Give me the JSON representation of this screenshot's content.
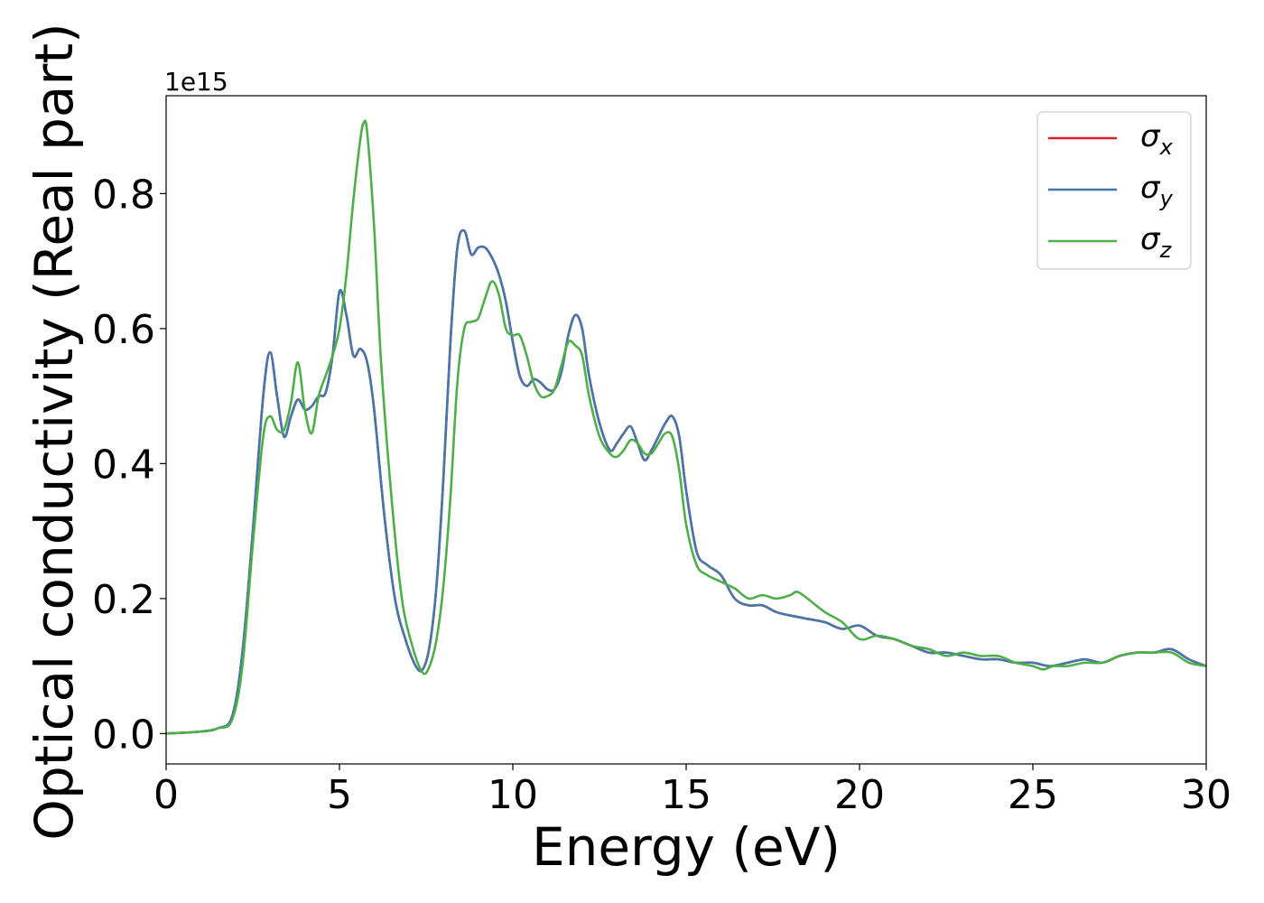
{
  "chart_data": {
    "type": "line",
    "xlabel": "Energy (eV)",
    "ylabel": "Optical conductivity (Real part)",
    "offset_text": "1e15",
    "xlim": [
      0,
      30
    ],
    "ylim": [
      -0.045,
      0.945
    ],
    "xticks": [
      0,
      5,
      10,
      15,
      20,
      25,
      30
    ],
    "yticks": [
      0.0,
      0.2,
      0.4,
      0.6,
      0.8
    ],
    "xtick_labels": [
      "0",
      "5",
      "10",
      "15",
      "20",
      "25",
      "30"
    ],
    "ytick_labels": [
      "0.0",
      "0.2",
      "0.4",
      "0.6",
      "0.8"
    ],
    "grid": false,
    "legend_position": "top-right",
    "series": [
      {
        "name": "σ_x",
        "legend_main": "σ",
        "legend_sub": "x",
        "color": "#e41a1c",
        "x": [
          0,
          1,
          1.5,
          1.9,
          2.2,
          2.5,
          2.8,
          3.0,
          3.2,
          3.4,
          3.6,
          3.8,
          4.0,
          4.2,
          4.4,
          4.6,
          4.8,
          5.0,
          5.2,
          5.4,
          5.6,
          5.8,
          6.0,
          6.3,
          6.6,
          6.9,
          7.2,
          7.4,
          7.6,
          7.8,
          8.0,
          8.2,
          8.4,
          8.6,
          8.8,
          9.0,
          9.2,
          9.4,
          9.6,
          9.8,
          10.0,
          10.2,
          10.4,
          10.6,
          10.8,
          11.0,
          11.2,
          11.4,
          11.6,
          11.8,
          12.0,
          12.2,
          12.5,
          12.8,
          13.0,
          13.2,
          13.4,
          13.6,
          13.8,
          14.0,
          14.2,
          14.4,
          14.6,
          14.8,
          15.0,
          15.3,
          15.6,
          16.0,
          16.4,
          16.8,
          17.2,
          17.6,
          18.0,
          18.5,
          19.0,
          19.5,
          20.0,
          20.5,
          21.0,
          21.5,
          22.0,
          22.5,
          23.0,
          23.5,
          24.0,
          24.5,
          25.0,
          25.5,
          26.0,
          26.5,
          27.0,
          27.5,
          28.0,
          28.5,
          29.0,
          29.5,
          30.0
        ],
        "y": [
          0.0,
          0.003,
          0.008,
          0.025,
          0.12,
          0.3,
          0.5,
          0.565,
          0.5,
          0.44,
          0.47,
          0.495,
          0.48,
          0.485,
          0.5,
          0.505,
          0.56,
          0.655,
          0.62,
          0.56,
          0.57,
          0.55,
          0.48,
          0.32,
          0.2,
          0.14,
          0.1,
          0.095,
          0.13,
          0.22,
          0.38,
          0.58,
          0.72,
          0.745,
          0.71,
          0.72,
          0.72,
          0.705,
          0.68,
          0.64,
          0.58,
          0.53,
          0.515,
          0.525,
          0.52,
          0.51,
          0.51,
          0.535,
          0.59,
          0.62,
          0.6,
          0.53,
          0.46,
          0.42,
          0.43,
          0.445,
          0.455,
          0.43,
          0.405,
          0.42,
          0.44,
          0.46,
          0.47,
          0.44,
          0.36,
          0.27,
          0.25,
          0.235,
          0.2,
          0.19,
          0.19,
          0.18,
          0.175,
          0.17,
          0.165,
          0.155,
          0.16,
          0.145,
          0.14,
          0.13,
          0.12,
          0.12,
          0.115,
          0.11,
          0.11,
          0.105,
          0.105,
          0.1,
          0.105,
          0.11,
          0.105,
          0.115,
          0.12,
          0.12,
          0.125,
          0.11,
          0.1
        ],
        "mirrors": "σ_y"
      },
      {
        "name": "σ_y",
        "legend_main": "σ",
        "legend_sub": "y",
        "color": "#4677aa",
        "x": [
          0,
          1,
          1.5,
          1.9,
          2.2,
          2.5,
          2.8,
          3.0,
          3.2,
          3.4,
          3.6,
          3.8,
          4.0,
          4.2,
          4.4,
          4.6,
          4.8,
          5.0,
          5.2,
          5.4,
          5.6,
          5.8,
          6.0,
          6.3,
          6.6,
          6.9,
          7.2,
          7.4,
          7.6,
          7.8,
          8.0,
          8.2,
          8.4,
          8.6,
          8.8,
          9.0,
          9.2,
          9.4,
          9.6,
          9.8,
          10.0,
          10.2,
          10.4,
          10.6,
          10.8,
          11.0,
          11.2,
          11.4,
          11.6,
          11.8,
          12.0,
          12.2,
          12.5,
          12.8,
          13.0,
          13.2,
          13.4,
          13.6,
          13.8,
          14.0,
          14.2,
          14.4,
          14.6,
          14.8,
          15.0,
          15.3,
          15.6,
          16.0,
          16.4,
          16.8,
          17.2,
          17.6,
          18.0,
          18.5,
          19.0,
          19.5,
          20.0,
          20.5,
          21.0,
          21.5,
          22.0,
          22.5,
          23.0,
          23.5,
          24.0,
          24.5,
          25.0,
          25.5,
          26.0,
          26.5,
          27.0,
          27.5,
          28.0,
          28.5,
          29.0,
          29.5,
          30.0
        ],
        "y": [
          0.0,
          0.003,
          0.008,
          0.025,
          0.12,
          0.3,
          0.5,
          0.565,
          0.5,
          0.44,
          0.47,
          0.495,
          0.48,
          0.485,
          0.5,
          0.505,
          0.56,
          0.655,
          0.62,
          0.56,
          0.57,
          0.55,
          0.48,
          0.32,
          0.2,
          0.14,
          0.1,
          0.095,
          0.13,
          0.22,
          0.38,
          0.58,
          0.72,
          0.745,
          0.71,
          0.72,
          0.72,
          0.705,
          0.68,
          0.64,
          0.58,
          0.53,
          0.515,
          0.525,
          0.52,
          0.51,
          0.51,
          0.535,
          0.59,
          0.62,
          0.6,
          0.53,
          0.46,
          0.42,
          0.43,
          0.445,
          0.455,
          0.43,
          0.405,
          0.42,
          0.44,
          0.46,
          0.47,
          0.44,
          0.36,
          0.27,
          0.25,
          0.235,
          0.2,
          0.19,
          0.19,
          0.18,
          0.175,
          0.17,
          0.165,
          0.155,
          0.16,
          0.145,
          0.14,
          0.13,
          0.12,
          0.12,
          0.115,
          0.11,
          0.11,
          0.105,
          0.105,
          0.1,
          0.105,
          0.11,
          0.105,
          0.115,
          0.12,
          0.12,
          0.125,
          0.11,
          0.1
        ]
      },
      {
        "name": "σ_z",
        "legend_main": "σ",
        "legend_sub": "z",
        "color": "#4daf4a",
        "x": [
          0,
          1,
          1.5,
          1.9,
          2.2,
          2.5,
          2.8,
          3.0,
          3.2,
          3.4,
          3.6,
          3.8,
          4.0,
          4.2,
          4.4,
          4.6,
          4.8,
          5.0,
          5.2,
          5.4,
          5.6,
          5.7,
          5.8,
          6.0,
          6.2,
          6.5,
          6.8,
          7.1,
          7.4,
          7.6,
          7.8,
          8.0,
          8.2,
          8.4,
          8.6,
          8.8,
          9.0,
          9.2,
          9.4,
          9.6,
          9.8,
          10.0,
          10.2,
          10.4,
          10.6,
          10.8,
          11.0,
          11.2,
          11.4,
          11.6,
          11.8,
          12.0,
          12.2,
          12.5,
          12.8,
          13.0,
          13.2,
          13.4,
          13.6,
          13.8,
          14.0,
          14.2,
          14.4,
          14.6,
          14.8,
          15.0,
          15.3,
          15.6,
          16.0,
          16.4,
          16.8,
          17.2,
          17.6,
          18.0,
          18.2,
          18.5,
          19.0,
          19.5,
          20.0,
          20.5,
          21.0,
          21.5,
          22.0,
          22.5,
          23.0,
          23.5,
          24.0,
          24.5,
          25.0,
          25.3,
          25.6,
          26.0,
          26.5,
          27.0,
          27.5,
          28.0,
          28.5,
          29.0,
          29.5,
          30.0
        ],
        "y": [
          0.0,
          0.003,
          0.008,
          0.02,
          0.1,
          0.28,
          0.44,
          0.47,
          0.45,
          0.45,
          0.49,
          0.55,
          0.48,
          0.445,
          0.5,
          0.53,
          0.56,
          0.6,
          0.68,
          0.79,
          0.88,
          0.905,
          0.89,
          0.75,
          0.55,
          0.35,
          0.2,
          0.13,
          0.09,
          0.1,
          0.14,
          0.22,
          0.35,
          0.52,
          0.6,
          0.61,
          0.615,
          0.645,
          0.67,
          0.65,
          0.6,
          0.59,
          0.59,
          0.56,
          0.52,
          0.5,
          0.5,
          0.51,
          0.545,
          0.58,
          0.575,
          0.56,
          0.5,
          0.44,
          0.415,
          0.41,
          0.42,
          0.435,
          0.43,
          0.415,
          0.415,
          0.43,
          0.445,
          0.44,
          0.39,
          0.31,
          0.25,
          0.235,
          0.225,
          0.215,
          0.2,
          0.205,
          0.2,
          0.205,
          0.21,
          0.2,
          0.18,
          0.165,
          0.14,
          0.145,
          0.14,
          0.13,
          0.125,
          0.115,
          0.12,
          0.115,
          0.115,
          0.105,
          0.1,
          0.095,
          0.1,
          0.1,
          0.105,
          0.105,
          0.115,
          0.12,
          0.12,
          0.12,
          0.105,
          0.1
        ]
      }
    ]
  }
}
